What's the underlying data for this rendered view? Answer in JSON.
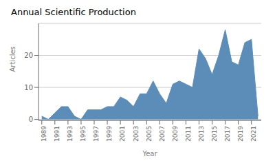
{
  "chart_data": {
    "type": "area",
    "title": "Annual Scientific Production",
    "xlabel": "Year",
    "ylabel": "Articles",
    "x": [
      1989,
      1990,
      1991,
      1992,
      1993,
      1994,
      1995,
      1996,
      1997,
      1998,
      1999,
      2000,
      2001,
      2002,
      2003,
      2004,
      2005,
      2006,
      2007,
      2008,
      2009,
      2010,
      2011,
      2012,
      2013,
      2014,
      2015,
      2016,
      2017,
      2018,
      2019,
      2020,
      2021,
      2022
    ],
    "values": [
      1,
      0,
      2,
      4,
      4,
      1,
      0,
      3,
      3,
      3,
      4,
      4,
      7,
      6,
      4,
      8,
      8,
      12,
      8,
      5,
      11,
      12,
      11,
      10,
      22,
      19,
      14,
      20,
      28,
      18,
      17,
      24,
      25,
      1
    ],
    "color": "#5b8db8",
    "xlim": [
      1988.5,
      2022.5
    ],
    "ylim": [
      -0.3,
      30
    ],
    "xticks": [
      1989,
      1991,
      1993,
      1995,
      1997,
      1999,
      2001,
      2003,
      2005,
      2007,
      2009,
      2011,
      2013,
      2015,
      2017,
      2019,
      2021
    ],
    "yticks": [
      0,
      10,
      20
    ],
    "grid": true
  }
}
